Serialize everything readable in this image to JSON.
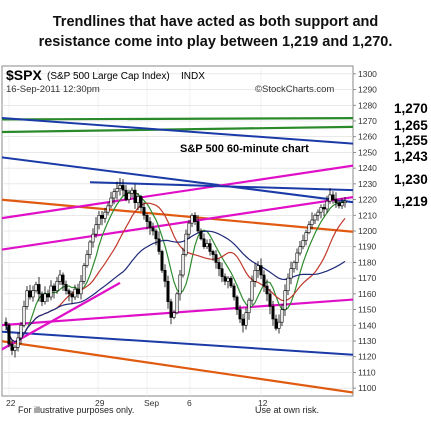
{
  "headline": {
    "line1": "Trendlines that have acted as both support  and",
    "line2": "resistance come into play  between 1,219 and 1,270."
  },
  "chart_data": {
    "type": "candlestick",
    "symbol": "$SPX",
    "name": "(S&P 500 Large Cap Index)",
    "exchange": "INDX",
    "date": "16-Sep-2011 12:30pm",
    "credit": "©StockCharts.com",
    "annotation": "S&P 500 60-minute chart",
    "footer_left": "For illustrative purposes only.",
    "footer_right": "Use at own risk.",
    "x_labels": [
      "22",
      "29",
      "Sep",
      "6",
      "12"
    ],
    "ylim": [
      1095,
      1305
    ],
    "yticks": [
      1100,
      1110,
      1120,
      1130,
      1140,
      1150,
      1160,
      1170,
      1180,
      1190,
      1200,
      1210,
      1220,
      1230,
      1240,
      1250,
      1260,
      1270,
      1280,
      1290,
      1300
    ],
    "level_labels": [
      "1,270",
      "1,265",
      "1,255",
      "1,243",
      "1,230",
      "1,219"
    ],
    "closes": [
      1140,
      1128,
      1124,
      1126,
      1132,
      1140,
      1152,
      1162,
      1158,
      1162,
      1166,
      1160,
      1155,
      1160,
      1158,
      1165,
      1162,
      1168,
      1172,
      1166,
      1162,
      1160,
      1158,
      1163,
      1160,
      1168,
      1178,
      1185,
      1193,
      1198,
      1204,
      1210,
      1208,
      1212,
      1216,
      1221,
      1225,
      1227,
      1229,
      1226,
      1220,
      1224,
      1226,
      1218,
      1222,
      1215,
      1210,
      1206,
      1202,
      1200,
      1195,
      1187,
      1175,
      1168,
      1155,
      1145,
      1148,
      1160,
      1172,
      1185,
      1198,
      1205,
      1210,
      1206,
      1200,
      1195,
      1190,
      1192,
      1187,
      1185,
      1180,
      1176,
      1171,
      1168,
      1170,
      1165,
      1158,
      1150,
      1144,
      1140,
      1148,
      1156,
      1168,
      1175,
      1178,
      1172,
      1165,
      1160,
      1152,
      1144,
      1138,
      1142,
      1150,
      1162,
      1170,
      1176,
      1180,
      1186,
      1190,
      1194,
      1199,
      1204,
      1207,
      1210,
      1212,
      1215,
      1214,
      1219,
      1223,
      1220,
      1218,
      1216,
      1218,
      1219
    ]
  }
}
